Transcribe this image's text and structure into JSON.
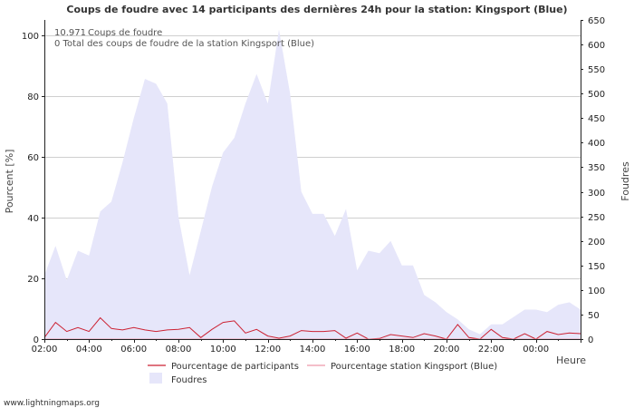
{
  "chart_data": {
    "type": "area",
    "title": "Coups de foudre avec 14 participants des dernières 24h pour la station: Kingsport (Blue)",
    "xlabel": "Heure",
    "ylabel_left": "Pourcent   [%]",
    "ylabel_right": "Foudres",
    "ylim_left": [
      0,
      105
    ],
    "ylim_right": [
      0,
      650
    ],
    "yticks_left": [
      "0",
      "20",
      "40",
      "60",
      "80",
      "100"
    ],
    "yticks_right": [
      "0",
      "50",
      "100",
      "150",
      "200",
      "250",
      "300",
      "350",
      "400",
      "450",
      "500",
      "550",
      "600",
      "650"
    ],
    "xticks": [
      "02:00",
      "04:00",
      "06:00",
      "08:00",
      "10:00",
      "12:00",
      "14:00",
      "16:00",
      "18:00",
      "20:00",
      "22:00",
      "00:00"
    ],
    "x_hours": [
      0,
      0.5,
      1,
      1.5,
      2,
      2.5,
      3,
      3.5,
      4,
      4.5,
      5,
      5.5,
      6,
      6.5,
      7,
      7.5,
      8,
      8.5,
      9,
      9.5,
      10,
      10.5,
      11,
      11.5,
      12,
      12.5,
      13,
      13.5,
      14,
      14.5,
      15,
      15.5,
      16,
      16.5,
      17,
      17.5,
      18,
      18.5,
      19,
      19.5,
      20,
      20.5,
      21,
      21.5,
      22,
      22.5,
      23,
      23.5,
      24
    ],
    "series": [
      {
        "name": "Foudres",
        "axis": "right",
        "style": "area",
        "color": "#e6e6fa",
        "values": [
          130,
          190,
          120,
          180,
          170,
          260,
          280,
          360,
          450,
          530,
          520,
          480,
          250,
          130,
          220,
          310,
          380,
          410,
          480,
          540,
          480,
          630,
          500,
          300,
          255,
          255,
          210,
          265,
          140,
          180,
          175,
          200,
          150,
          150,
          90,
          75,
          55,
          40,
          20,
          10,
          30,
          30,
          45,
          60,
          60,
          55,
          70,
          75,
          60
        ]
      },
      {
        "name": "Pourcentage de participants",
        "axis": "left",
        "style": "line",
        "color": "#cc2233",
        "values": [
          0.5,
          5.5,
          2.5,
          3.8,
          2.5,
          7,
          3.5,
          3,
          3.8,
          3,
          2.5,
          3,
          3.2,
          3.8,
          0.5,
          3.2,
          5.5,
          6,
          2,
          3.2,
          1,
          0.3,
          1,
          2.8,
          2.5,
          2.5,
          2.8,
          0.3,
          2,
          0,
          0.2,
          1.5,
          1,
          0.5,
          1.8,
          1,
          0,
          4.8,
          0.5,
          0,
          3.2,
          0.5,
          0,
          1.8,
          0,
          2.5,
          1.5,
          2,
          1.8
        ]
      },
      {
        "name": "Pourcentage station Kingsport (Blue)",
        "axis": "left",
        "style": "line",
        "color": "#ee99aa",
        "values": [
          0,
          0,
          0,
          0,
          0,
          0,
          0,
          0,
          0,
          0,
          0,
          0,
          0,
          0,
          0,
          0,
          0,
          0,
          0,
          0,
          0,
          0,
          0,
          0,
          0,
          0,
          0,
          0,
          0,
          0,
          0,
          0,
          0,
          0,
          0,
          0,
          0,
          0,
          0,
          0,
          0,
          0,
          0,
          0,
          0,
          0,
          0,
          0,
          0
        ]
      }
    ],
    "annotations": {
      "line1_value": "10.971",
      "line1_text": "Coups de foudre",
      "line2_text": "0 Total des coups de foudre de la station Kingsport (Blue)"
    },
    "legend": {
      "placement": "bottom-center",
      "item1": "Pourcentage de participants",
      "item2": "Pourcentage station Kingsport (Blue)",
      "item3": "Foudres"
    }
  },
  "footer": {
    "credit": "www.lightningmaps.org"
  }
}
